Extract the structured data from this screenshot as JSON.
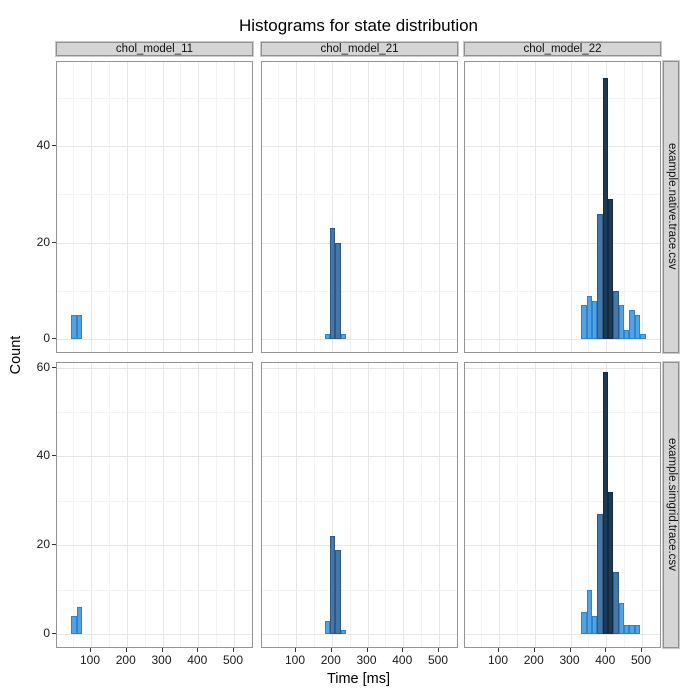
{
  "title": "Histograms for state distribution",
  "x_axis": {
    "label": "Time [ms]",
    "ticks": [
      100,
      200,
      300,
      400,
      500
    ]
  },
  "y_axis": {
    "label": "Count"
  },
  "facets": {
    "columns": [
      "chol_model_11",
      "chol_model_21",
      "chol_model_22"
    ],
    "rows": [
      "example.native.trace.csv",
      "example.simgrid.trace.csv"
    ]
  },
  "rows": [
    {
      "label": "example.native.trace.csv",
      "yticks": [
        0,
        20,
        40
      ]
    },
    {
      "label": "example.simgrid.trace.csv",
      "yticks": [
        0,
        20,
        40,
        60
      ]
    }
  ],
  "chart_data": {
    "type": "bar",
    "subtype": "faceted-histogram",
    "title": "Histograms for state distribution",
    "xlabel": "Time [ms]",
    "ylabel": "Count",
    "x_range_ms": [
      0,
      560
    ],
    "binwidth_ms": 15,
    "grid": "on",
    "colors": {
      "light": "#53a2e3",
      "medium": "#4478a9",
      "dark": "#1d3a55"
    },
    "bar_borders": {
      "light": "#2b85cc",
      "medium": "#2d5a84",
      "dark": "#142c42"
    },
    "panels": [
      {
        "row": "example.native.trace.csv",
        "col": "chol_model_11",
        "bars": [
          {
            "t": 45,
            "count": 5,
            "shade": "light"
          },
          {
            "t": 60,
            "count": 5,
            "shade": "light"
          }
        ]
      },
      {
        "row": "example.native.trace.csv",
        "col": "chol_model_21",
        "bars": [
          {
            "t": 180,
            "count": 1,
            "shade": "light"
          },
          {
            "t": 195,
            "count": 23,
            "shade": "medium"
          },
          {
            "t": 210,
            "count": 20,
            "shade": "medium"
          },
          {
            "t": 225,
            "count": 1,
            "shade": "light"
          }
        ]
      },
      {
        "row": "example.native.trace.csv",
        "col": "chol_model_22",
        "bars": [
          {
            "t": 330,
            "count": 7,
            "shade": "light"
          },
          {
            "t": 345,
            "count": 9,
            "shade": "light"
          },
          {
            "t": 360,
            "count": 8,
            "shade": "light"
          },
          {
            "t": 375,
            "count": 26,
            "shade": "medium"
          },
          {
            "t": 390,
            "count": 54,
            "shade": "dark"
          },
          {
            "t": 405,
            "count": 29,
            "shade": "dark"
          },
          {
            "t": 420,
            "count": 10,
            "shade": "medium"
          },
          {
            "t": 435,
            "count": 7,
            "shade": "light"
          },
          {
            "t": 450,
            "count": 2,
            "shade": "light"
          },
          {
            "t": 465,
            "count": 6,
            "shade": "light"
          },
          {
            "t": 480,
            "count": 5,
            "shade": "light"
          },
          {
            "t": 495,
            "count": 1,
            "shade": "light"
          }
        ]
      },
      {
        "row": "example.simgrid.trace.csv",
        "col": "chol_model_11",
        "bars": [
          {
            "t": 45,
            "count": 4,
            "shade": "light"
          },
          {
            "t": 60,
            "count": 6,
            "shade": "light"
          }
        ]
      },
      {
        "row": "example.simgrid.trace.csv",
        "col": "chol_model_21",
        "bars": [
          {
            "t": 180,
            "count": 3,
            "shade": "light"
          },
          {
            "t": 195,
            "count": 22,
            "shade": "medium"
          },
          {
            "t": 210,
            "count": 19,
            "shade": "medium"
          },
          {
            "t": 225,
            "count": 1,
            "shade": "light"
          }
        ]
      },
      {
        "row": "example.simgrid.trace.csv",
        "col": "chol_model_22",
        "bars": [
          {
            "t": 330,
            "count": 5,
            "shade": "light"
          },
          {
            "t": 345,
            "count": 10,
            "shade": "light"
          },
          {
            "t": 360,
            "count": 4,
            "shade": "light"
          },
          {
            "t": 375,
            "count": 27,
            "shade": "medium"
          },
          {
            "t": 390,
            "count": 59,
            "shade": "dark"
          },
          {
            "t": 405,
            "count": 32,
            "shade": "dark"
          },
          {
            "t": 420,
            "count": 14,
            "shade": "medium"
          },
          {
            "t": 435,
            "count": 7,
            "shade": "light"
          },
          {
            "t": 450,
            "count": 2,
            "shade": "light"
          },
          {
            "t": 465,
            "count": 2,
            "shade": "light"
          },
          {
            "t": 480,
            "count": 2,
            "shade": "light"
          }
        ]
      }
    ]
  }
}
